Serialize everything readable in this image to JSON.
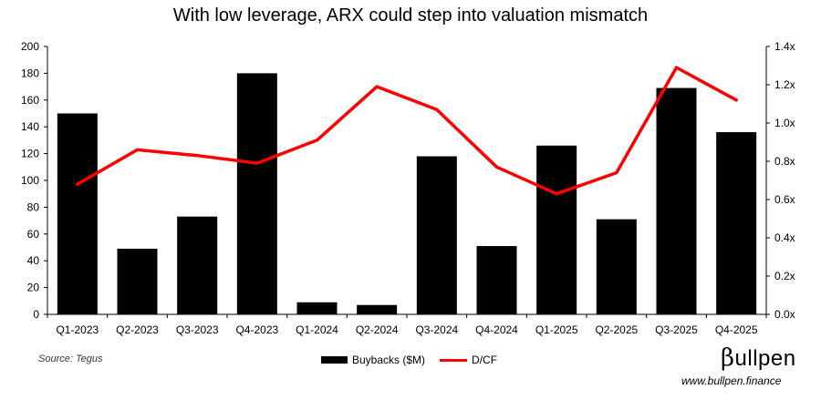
{
  "title": "With low leverage, ARX could step into valuation mismatch",
  "source": "Source: Tegus",
  "brand": {
    "mark": "β",
    "name": "ullpen",
    "url": "www.bullpen.finance"
  },
  "chart_data": {
    "type": "bar",
    "categories": [
      "Q1-2023",
      "Q2-2023",
      "Q3-2023",
      "Q4-2023",
      "Q1-2024",
      "Q2-2024",
      "Q3-2024",
      "Q4-2024",
      "Q1-2025",
      "Q2-2025",
      "Q3-2025",
      "Q4-2025"
    ],
    "series": [
      {
        "name": "Buybacks ($M)",
        "type": "bar",
        "axis": "left",
        "color": "#000000",
        "values": [
          150,
          49,
          73,
          180,
          9,
          7,
          118,
          51,
          126,
          71,
          169,
          136
        ]
      },
      {
        "name": "D/CF",
        "type": "line",
        "axis": "right",
        "color": "#ff0000",
        "values": [
          0.68,
          0.86,
          0.83,
          0.79,
          0.91,
          1.19,
          1.07,
          0.77,
          0.63,
          0.74,
          1.29,
          1.12
        ]
      }
    ],
    "y_left": {
      "min": 0,
      "max": 200,
      "ticks": [
        "0",
        "20",
        "40",
        "60",
        "80",
        "100",
        "120",
        "140",
        "160",
        "180",
        "200"
      ]
    },
    "y_right": {
      "min": 0,
      "max": 1.4,
      "ticks": [
        "0.0x",
        "0.2x",
        "0.4x",
        "0.6x",
        "0.8x",
        "1.0x",
        "1.2x",
        "1.4x"
      ]
    },
    "grid": false,
    "legend": "bottom"
  }
}
